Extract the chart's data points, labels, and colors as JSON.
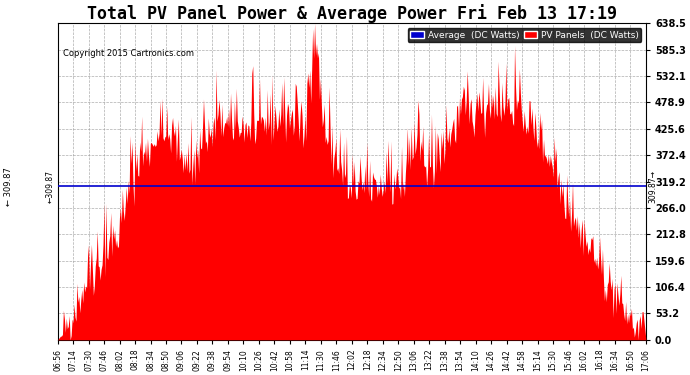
{
  "title": "Total PV Panel Power & Average Power Fri Feb 13 17:19",
  "copyright": "Copyright 2015 Cartronics.com",
  "average_value": 309.87,
  "ylim": [
    0,
    638.5
  ],
  "yticks": [
    0.0,
    53.2,
    106.4,
    159.6,
    212.8,
    266.0,
    319.2,
    372.4,
    425.6,
    478.9,
    532.1,
    585.3,
    638.5
  ],
  "ytick_labels": [
    "0.0",
    "53.2",
    "106.4",
    "159.6",
    "212.8",
    "266.0",
    "319.2",
    "372.4",
    "425.6",
    "478.9",
    "532.1",
    "585.3",
    "638.5"
  ],
  "xtick_labels": [
    "06:56",
    "07:14",
    "07:30",
    "07:46",
    "08:02",
    "08:18",
    "08:34",
    "08:50",
    "09:06",
    "09:22",
    "09:38",
    "09:54",
    "10:10",
    "10:26",
    "10:42",
    "10:58",
    "11:14",
    "11:30",
    "11:46",
    "12:02",
    "12:18",
    "12:34",
    "12:50",
    "13:06",
    "13:22",
    "13:38",
    "13:54",
    "14:10",
    "14:26",
    "14:42",
    "14:58",
    "15:14",
    "15:30",
    "15:46",
    "16:02",
    "16:18",
    "16:34",
    "16:50",
    "17:06"
  ],
  "fill_color": "#FF0000",
  "average_line_color": "#0000CD",
  "background_color": "#FFFFFF",
  "grid_color": "#999999",
  "title_fontsize": 12,
  "legend_avg_color": "#0000CD",
  "legend_pv_color": "#FF0000"
}
